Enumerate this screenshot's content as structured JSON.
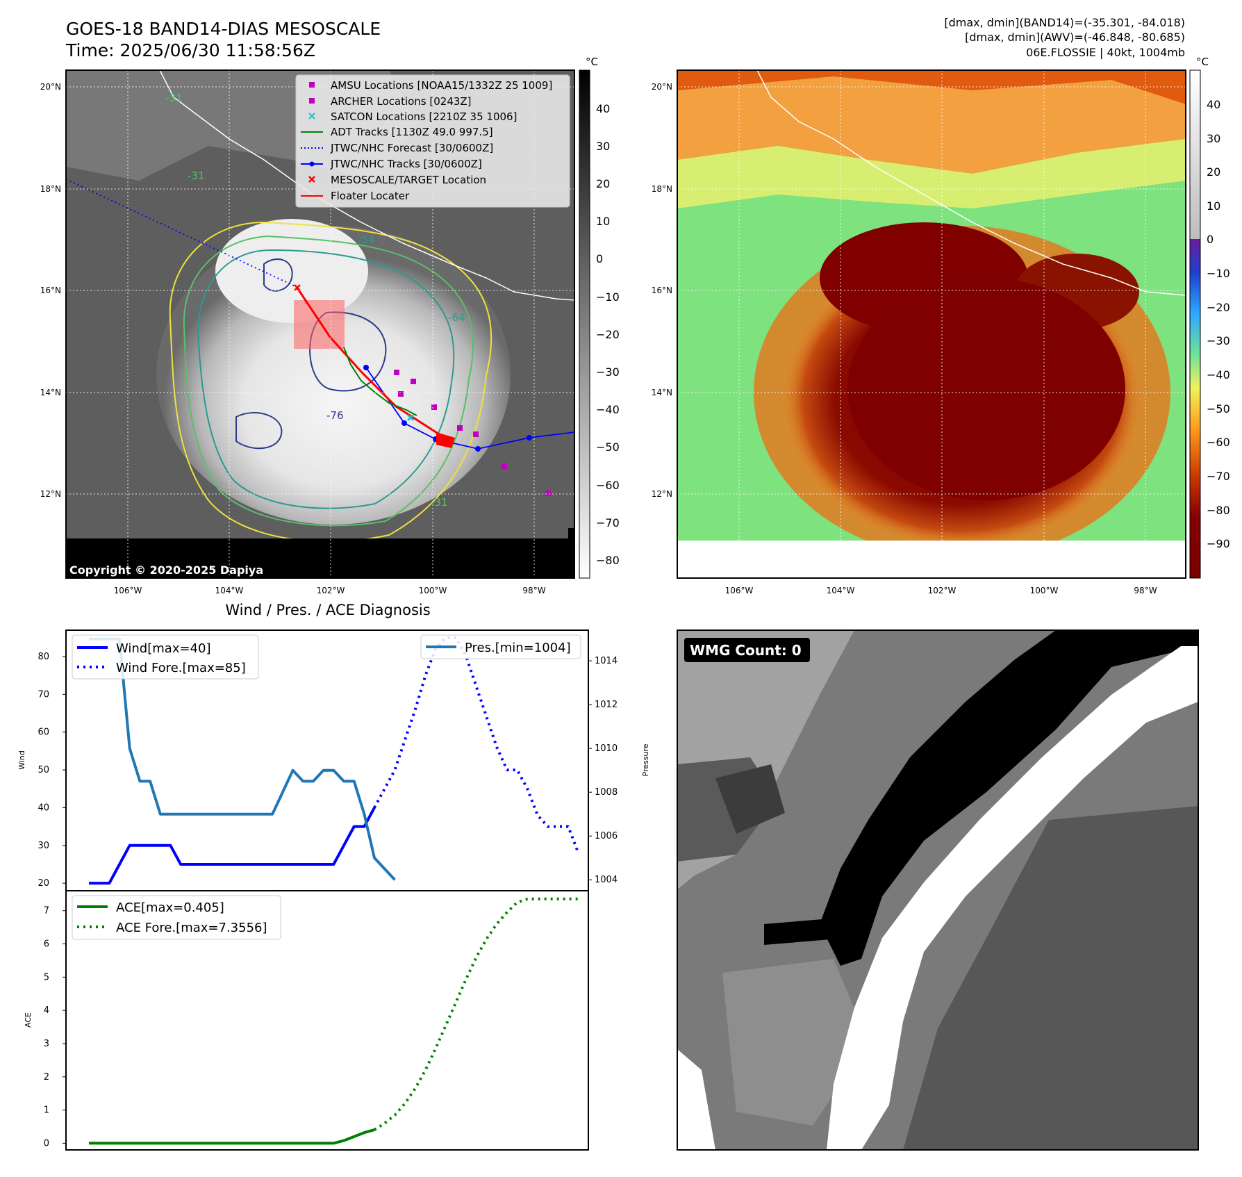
{
  "header": {
    "title": "GOES-18 BAND14-DIAS MESOSCALE",
    "time": "Time: 2025/06/30 11:58:56Z",
    "right_line1": "[dmax, dmin](BAND14)=(-35.301, -84.018)",
    "right_line2": "[dmax, dmin](AWV)=(-46.848, -80.685)",
    "right_line3": "06E.FLOSSIE | 40kt, 1004mb"
  },
  "copyright": "Copyright © 2020-2025 Dapiya",
  "colorbar_unit": "°C",
  "colorbar1_ticks": [
    "40",
    "30",
    "20",
    "10",
    "0",
    "−10",
    "−20",
    "−30",
    "−40",
    "−50",
    "−60",
    "−70",
    "−80"
  ],
  "colorbar2_ticks": [
    "40",
    "30",
    "20",
    "10",
    "0",
    "−10",
    "−20",
    "−30",
    "−40",
    "−50",
    "−60",
    "−70",
    "−80",
    "−90"
  ],
  "map_lat_labels": [
    "20°N",
    "18°N",
    "16°N",
    "14°N",
    "12°N"
  ],
  "map_lon_labels": [
    "106°W",
    "104°W",
    "102°W",
    "100°W",
    "98°W"
  ],
  "map_legend": [
    {
      "label": "AMSU Locations [NOAA15/1332Z 25 1009]",
      "marker": "square",
      "color": "#c000c0"
    },
    {
      "label": "ARCHER Locations [0243Z]",
      "marker": "square",
      "color": "#c000c0"
    },
    {
      "label": "SATCON Locations [2210Z 35 1006]",
      "marker": "x",
      "color": "#17becf"
    },
    {
      "label": "ADT Tracks [1130Z 49.0 997.5]",
      "marker": "line",
      "color": "#008000"
    },
    {
      "label": "JTWC/NHC Forecast [30/0600Z]",
      "marker": "dotted",
      "color": "#0000ff"
    },
    {
      "label": "JTWC/NHC Tracks [30/0600Z]",
      "marker": "line-dot",
      "color": "#0000ff"
    },
    {
      "label": "MESOSCALE/TARGET Location",
      "marker": "x",
      "color": "#ff0000"
    },
    {
      "label": "Floater Locater",
      "marker": "line",
      "color": "#ff0000"
    }
  ],
  "contour_labels": [
    "-31",
    "-31",
    "-54",
    "-64",
    "-76",
    "-31"
  ],
  "diag_title": "Wind / Pres. / ACE Diagnosis",
  "wmg_label": "WMG Count: 0",
  "chart_data": [
    {
      "type": "line",
      "title": "Wind / Pres. / ACE Diagnosis",
      "ylabel": "Wind",
      "y2label": "Pressure",
      "ylim": [
        18,
        87
      ],
      "y2lim": [
        1003.5,
        1015.4
      ],
      "yticks": [
        20,
        30,
        40,
        50,
        60,
        70,
        80
      ],
      "y2ticks": [
        1004,
        1006,
        1008,
        1010,
        1012,
        1014
      ],
      "series": [
        {
          "name": "Wind[max=40]",
          "axis": "left",
          "style": "solid",
          "color": "#0000ff",
          "values": [
            20,
            20,
            20,
            25,
            30,
            30,
            30,
            30,
            30,
            25,
            25,
            25,
            25,
            25,
            25,
            25,
            25,
            25,
            25,
            25,
            25,
            25,
            25,
            25,
            25,
            30,
            35,
            35,
            40
          ]
        },
        {
          "name": "Wind Fore.[max=85]",
          "axis": "left",
          "style": "dotted",
          "color": "#0000ff",
          "x_offset": 28,
          "values": [
            40,
            45,
            50,
            58,
            66,
            75,
            82,
            85,
            85,
            80,
            72,
            64,
            56,
            50,
            50,
            45,
            38,
            35,
            35,
            35,
            28
          ]
        },
        {
          "name": "Pres.[min=1004]",
          "axis": "right",
          "style": "solid",
          "color": "#1f77b4",
          "values": [
            1015,
            1015,
            1015,
            1015,
            1010,
            1008.5,
            1008.5,
            1007,
            1007,
            1007,
            1007,
            1007,
            1007,
            1007,
            1007,
            1007,
            1007,
            1007,
            1007,
            1008,
            1009,
            1008.5,
            1008.5,
            1009,
            1009,
            1008.5,
            1008.5,
            1007,
            1005,
            1004.5,
            1004
          ]
        }
      ]
    },
    {
      "type": "line",
      "ylabel": "ACE",
      "ylim": [
        -0.2,
        7.6
      ],
      "yticks": [
        0,
        1,
        2,
        3,
        4,
        5,
        6,
        7
      ],
      "series": [
        {
          "name": "ACE[max=0.405]",
          "style": "solid",
          "color": "#008000",
          "values": [
            0,
            0,
            0,
            0,
            0,
            0,
            0,
            0,
            0,
            0,
            0,
            0,
            0,
            0,
            0,
            0,
            0,
            0,
            0,
            0,
            0,
            0,
            0,
            0,
            0,
            0.08,
            0.2,
            0.32,
            0.405
          ]
        },
        {
          "name": "ACE Fore.[max=7.3556]",
          "style": "dotted",
          "color": "#008000",
          "x_offset": 28,
          "values": [
            0.405,
            0.6,
            0.85,
            1.2,
            1.65,
            2.2,
            2.85,
            3.55,
            4.25,
            4.95,
            5.6,
            6.15,
            6.6,
            6.95,
            7.25,
            7.35,
            7.3556,
            7.3556,
            7.3556,
            7.3556,
            7.3556
          ]
        }
      ]
    }
  ]
}
